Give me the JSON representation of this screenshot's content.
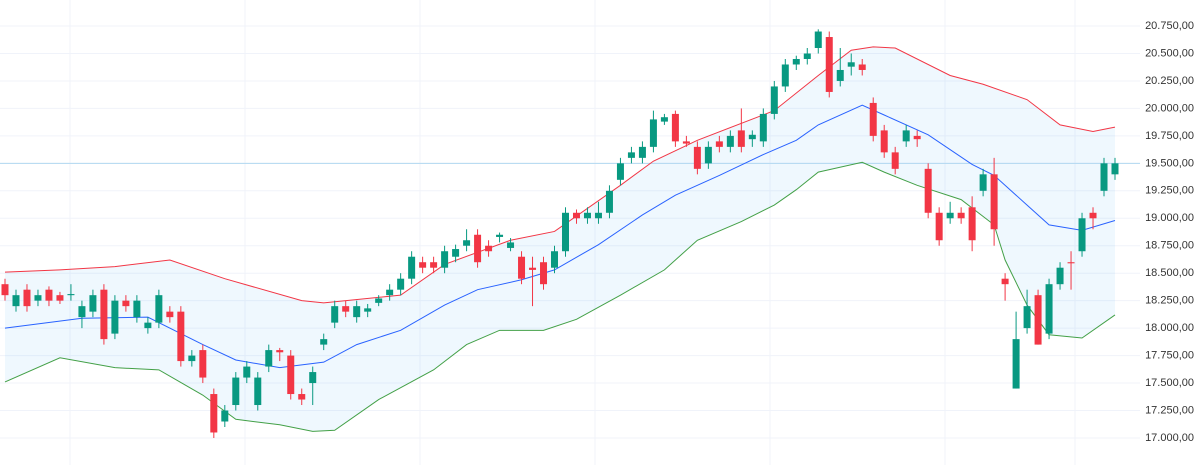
{
  "chart_data": {
    "type": "candlestick",
    "up_color": "#089981",
    "down_color": "#f23645",
    "open": [
      18400,
      18200,
      18350,
      18250,
      18350,
      18300,
      18300,
      18100,
      18150,
      18350,
      17950,
      18250,
      18100,
      18000,
      18050,
      18150,
      18150,
      17700,
      17800,
      17400,
      17150,
      17300,
      17550,
      17300,
      17650,
      17800,
      17750,
      17400,
      17500,
      17850,
      18050,
      18200,
      18100,
      18150,
      18230,
      18300,
      18350,
      18450,
      18600,
      18600,
      18550,
      18650,
      18750,
      18850,
      18750,
      18830,
      18730,
      18650,
      18550,
      18600,
      18550,
      18700,
      19050,
      19000,
      19000,
      19050,
      19350,
      19550,
      19550,
      19650,
      19880,
      19950,
      19700,
      19650,
      19500,
      19700,
      19650,
      19800,
      19720,
      19700,
      19950,
      20200,
      20400,
      20450,
      20550,
      20650,
      20250,
      20380,
      20400,
      20050,
      19800,
      19600,
      19700,
      19750,
      19450,
      19050,
      19000,
      19050,
      19100,
      19250,
      19400,
      18450,
      17450,
      18000,
      18300,
      17950,
      18400,
      18600,
      18700,
      19050,
      19250,
      19400
    ],
    "high": [
      18450,
      18350,
      18400,
      18350,
      18380,
      18330,
      18400,
      18250,
      18350,
      18400,
      18300,
      18300,
      18300,
      18100,
      18350,
      18200,
      18200,
      17800,
      17850,
      17450,
      17300,
      17600,
      17700,
      17600,
      17850,
      17820,
      17800,
      17450,
      17650,
      17950,
      18250,
      18250,
      18250,
      18220,
      18300,
      18400,
      18500,
      18700,
      18650,
      18650,
      18750,
      18760,
      18900,
      18900,
      18800,
      18870,
      18820,
      18700,
      18650,
      18650,
      18750,
      19100,
      19080,
      19100,
      19150,
      19300,
      19550,
      19650,
      19700,
      19980,
      19950,
      19980,
      19750,
      19700,
      19700,
      19750,
      19800,
      20000,
      19800,
      20000,
      20250,
      20450,
      20480,
      20550,
      20720,
      20700,
      20550,
      20500,
      20450,
      20100,
      19850,
      19650,
      19850,
      19800,
      19500,
      19100,
      19150,
      19100,
      19200,
      19450,
      19550,
      18500,
      18150,
      18350,
      18350,
      18450,
      18600,
      18700,
      19050,
      19100,
      19550,
      19550
    ],
    "low": [
      18250,
      18150,
      18150,
      18200,
      18200,
      18220,
      18250,
      18000,
      18100,
      17850,
      17900,
      18150,
      18050,
      17950,
      18000,
      18050,
      17650,
      17650,
      17500,
      17000,
      17100,
      17250,
      17500,
      17250,
      17600,
      17700,
      17350,
      17300,
      17300,
      17800,
      18000,
      18100,
      18050,
      18100,
      18200,
      18250,
      18300,
      18400,
      18500,
      18500,
      18500,
      18600,
      18700,
      18550,
      18650,
      18780,
      18700,
      18400,
      18200,
      18350,
      18500,
      18650,
      18950,
      18950,
      18950,
      19000,
      19300,
      19500,
      19500,
      19600,
      19850,
      19650,
      19650,
      19400,
      19450,
      19600,
      19600,
      19600,
      19650,
      19650,
      19900,
      20150,
      20350,
      20400,
      20500,
      20100,
      20200,
      20300,
      20300,
      19700,
      19550,
      19400,
      19650,
      19650,
      19000,
      18750,
      18950,
      18950,
      18700,
      19200,
      18750,
      18250,
      17450,
      17950,
      17850,
      17900,
      18350,
      18350,
      18650,
      18900,
      19200,
      19350
    ],
    "close": [
      18300,
      18300,
      18200,
      18300,
      18250,
      18250,
      18310,
      18200,
      18300,
      17900,
      18250,
      18200,
      18250,
      18050,
      18300,
      18100,
      17700,
      17750,
      17550,
      17050,
      17250,
      17550,
      17650,
      17550,
      17800,
      17780,
      17400,
      17350,
      17600,
      17900,
      18200,
      18150,
      18200,
      18180,
      18270,
      18350,
      18450,
      18650,
      18550,
      18550,
      18700,
      18720,
      18800,
      18600,
      18700,
      18850,
      18780,
      18450,
      18530,
      18400,
      18700,
      19050,
      19000,
      19050,
      19050,
      19250,
      19500,
      19600,
      19650,
      19900,
      19920,
      19700,
      19680,
      19450,
      19650,
      19650,
      19750,
      19650,
      19760,
      19950,
      20200,
      20400,
      20450,
      20500,
      20700,
      20150,
      20350,
      20420,
      20350,
      19750,
      19600,
      19450,
      19800,
      19720,
      19050,
      18800,
      19050,
      19000,
      18800,
      19400,
      18900,
      18400,
      17900,
      18200,
      17850,
      18400,
      18550,
      18590,
      19000,
      19000,
      19500,
      19500
    ],
    "bands": [
      {
        "color": "#f23645",
        "x": [
          0,
          5,
          10,
          15,
          20,
          27,
          29,
          36,
          40,
          46,
          50,
          56,
          59,
          63,
          70,
          74,
          77,
          79,
          81,
          86,
          89,
          93,
          96,
          99,
          101
        ],
        "values": [
          18510,
          18530,
          18560,
          18620,
          18450,
          18250,
          18230,
          18300,
          18580,
          18800,
          18880,
          19300,
          19520,
          19710,
          19980,
          20300,
          20530,
          20560,
          20550,
          20300,
          20220,
          20080,
          19850,
          19790,
          19830
        ]
      },
      {
        "color": "#2962ff",
        "x": [
          0,
          7,
          13,
          18,
          21,
          25,
          29,
          32,
          36,
          40,
          43,
          47,
          50,
          54,
          58,
          61,
          65,
          69,
          72,
          74,
          78,
          80,
          84,
          88,
          90,
          93,
          95,
          98,
          101
        ],
        "values": [
          18000,
          18090,
          18100,
          17850,
          17710,
          17640,
          17690,
          17850,
          17980,
          18210,
          18350,
          18440,
          18530,
          18760,
          19030,
          19210,
          19390,
          19580,
          19710,
          19850,
          20030,
          19940,
          19760,
          19490,
          19390,
          19120,
          18940,
          18890,
          18980
        ]
      },
      {
        "color": "#43a047",
        "x": [
          0,
          5,
          10,
          14,
          18,
          21,
          25,
          28,
          30,
          34,
          39,
          42,
          45,
          49,
          52,
          56,
          60,
          63,
          67,
          70,
          72,
          74,
          78,
          80,
          83,
          87,
          90,
          91,
          93,
          95,
          98,
          101
        ],
        "values": [
          17510,
          17730,
          17640,
          17620,
          17390,
          17170,
          17120,
          17060,
          17070,
          17350,
          17620,
          17850,
          17980,
          17980,
          18080,
          18300,
          18530,
          18800,
          18970,
          19120,
          19260,
          19420,
          19510,
          19420,
          19300,
          19170,
          18940,
          18620,
          18210,
          17940,
          17910,
          18120
        ]
      }
    ],
    "band_fill": "#2196f3",
    "price_line": 19500,
    "ylim": [
      16754,
      20987
    ],
    "yticks": [
      {
        "value": 17000,
        "label": "17.000,00"
      },
      {
        "value": 17250,
        "label": "17.250,00"
      },
      {
        "value": 17500,
        "label": "17.500,00"
      },
      {
        "value": 17750,
        "label": "17.750,00"
      },
      {
        "value": 18000,
        "label": "18.000,00"
      },
      {
        "value": 18250,
        "label": "18.250,00"
      },
      {
        "value": 18500,
        "label": "18.500,00"
      },
      {
        "value": 18750,
        "label": "18.750,00"
      },
      {
        "value": 19000,
        "label": "19.000,00"
      },
      {
        "value": 19250,
        "label": "19.250,00"
      },
      {
        "value": 19500,
        "label": "19.500,00"
      },
      {
        "value": 19750,
        "label": "19.750,00"
      },
      {
        "value": 20000,
        "label": "20.000,00"
      },
      {
        "value": 20250,
        "label": "20.250,00"
      },
      {
        "value": 20500,
        "label": "20.500,00"
      },
      {
        "value": 20750,
        "label": "20.750,00"
      }
    ],
    "grid": true
  }
}
